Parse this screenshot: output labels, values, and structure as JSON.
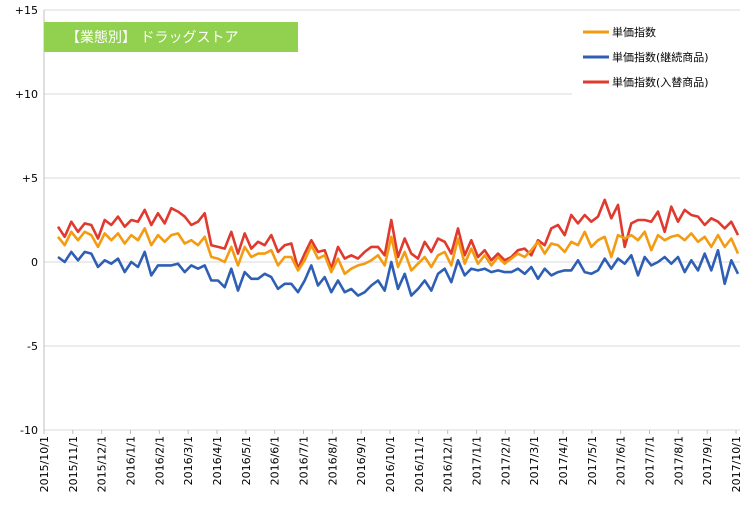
{
  "chart_data": {
    "type": "line",
    "title": "【業態別】 ドラッグストア",
    "title_box_color": "#92d050",
    "ylim": [
      -10,
      15
    ],
    "yticks": [
      15,
      10,
      5,
      0,
      -5,
      -10
    ],
    "ytick_labels": [
      "+15",
      "+10",
      "+5",
      "0",
      "-5",
      "-10"
    ],
    "x_tick_labels": [
      "2015/10/1",
      "2015/11/1",
      "2015/12/1",
      "2016/1/1",
      "2016/2/1",
      "2016/3/1",
      "2016/4/1",
      "2016/5/1",
      "2016/6/1",
      "2016/7/1",
      "2016/8/1",
      "2016/9/1",
      "2016/10/1",
      "2016/11/1",
      "2016/12/1",
      "2017/1/1",
      "2017/2/1",
      "2017/3/1",
      "2017/4/1",
      "2017/5/1",
      "2017/6/1",
      "2017/7/1",
      "2017/8/1",
      "2017/9/1",
      "2017/10/1"
    ],
    "grid": true,
    "legend_position": "top-right",
    "series": [
      {
        "name": "単価指数",
        "color": "#f39c12",
        "values": [
          1.5,
          1.0,
          1.8,
          1.3,
          1.8,
          1.6,
          0.9,
          1.7,
          1.3,
          1.7,
          1.1,
          1.6,
          1.3,
          2.0,
          1.0,
          1.6,
          1.2,
          1.6,
          1.7,
          1.1,
          1.3,
          1.0,
          1.5,
          0.3,
          0.2,
          0.0,
          0.9,
          -0.2,
          0.9,
          0.3,
          0.5,
          0.5,
          0.7,
          -0.2,
          0.3,
          0.3,
          -0.5,
          0.1,
          1.0,
          0.2,
          0.4,
          -0.6,
          0.2,
          -0.7,
          -0.4,
          -0.2,
          -0.1,
          0.1,
          0.4,
          -0.2,
          1.5,
          -0.3,
          0.6,
          -0.5,
          -0.1,
          0.3,
          -0.3,
          0.4,
          0.6,
          -0.2,
          1.4,
          -0.1,
          0.8,
          -0.1,
          0.4,
          -0.2,
          0.3,
          -0.1,
          0.2,
          0.5,
          0.3,
          0.7,
          1.2,
          0.5,
          1.1,
          1.0,
          0.6,
          1.2,
          1.0,
          1.8,
          0.9,
          1.3,
          1.5,
          0.3,
          1.6,
          1.4,
          1.6,
          1.3,
          1.8,
          0.7,
          1.6,
          1.3,
          1.5,
          1.6,
          1.3,
          1.7,
          1.2,
          1.5,
          0.9,
          1.6,
          0.9,
          1.4,
          0.5
        ]
      },
      {
        "name": "単価指数(継続商品)",
        "color": "#2f5fb5",
        "values": [
          0.3,
          0.0,
          0.6,
          0.1,
          0.6,
          0.5,
          -0.3,
          0.1,
          -0.1,
          0.2,
          -0.6,
          0.0,
          -0.3,
          0.6,
          -0.8,
          -0.2,
          -0.2,
          -0.2,
          -0.1,
          -0.6,
          -0.2,
          -0.4,
          -0.2,
          -1.1,
          -1.1,
          -1.5,
          -0.4,
          -1.7,
          -0.6,
          -1.0,
          -1.0,
          -0.7,
          -0.9,
          -1.6,
          -1.3,
          -1.3,
          -1.8,
          -1.1,
          -0.2,
          -1.4,
          -0.9,
          -1.8,
          -1.1,
          -1.8,
          -1.6,
          -2.0,
          -1.8,
          -1.4,
          -1.1,
          -1.7,
          0.0,
          -1.6,
          -0.7,
          -2.0,
          -1.6,
          -1.1,
          -1.7,
          -0.7,
          -0.4,
          -1.2,
          0.1,
          -0.8,
          -0.4,
          -0.5,
          -0.4,
          -0.6,
          -0.5,
          -0.6,
          -0.6,
          -0.4,
          -0.7,
          -0.3,
          -1.0,
          -0.4,
          -0.8,
          -0.6,
          -0.5,
          -0.5,
          0.1,
          -0.6,
          -0.7,
          -0.5,
          0.2,
          -0.4,
          0.2,
          -0.1,
          0.4,
          -0.8,
          0.3,
          -0.2,
          0.0,
          0.3,
          -0.1,
          0.3,
          -0.6,
          0.1,
          -0.5,
          0.5,
          -0.5,
          0.7,
          -1.3,
          0.1,
          -0.7
        ]
      },
      {
        "name": "単価指数(入替商品)",
        "color": "#e03a2e",
        "values": [
          2.1,
          1.5,
          2.4,
          1.8,
          2.3,
          2.2,
          1.4,
          2.5,
          2.2,
          2.7,
          2.1,
          2.5,
          2.4,
          3.1,
          2.2,
          2.9,
          2.3,
          3.2,
          3.0,
          2.7,
          2.2,
          2.4,
          2.9,
          1.0,
          0.9,
          0.8,
          1.8,
          0.5,
          1.7,
          0.8,
          1.2,
          1.0,
          1.6,
          0.6,
          1.0,
          1.1,
          -0.4,
          0.5,
          1.3,
          0.6,
          0.7,
          -0.4,
          0.9,
          0.2,
          0.4,
          0.2,
          0.6,
          0.9,
          0.9,
          0.4,
          2.5,
          0.3,
          1.4,
          0.5,
          0.2,
          1.2,
          0.6,
          1.4,
          1.2,
          0.5,
          2.0,
          0.4,
          1.3,
          0.3,
          0.7,
          0.1,
          0.5,
          0.1,
          0.3,
          0.7,
          0.8,
          0.4,
          1.3,
          1.0,
          2.0,
          2.2,
          1.6,
          2.8,
          2.3,
          2.8,
          2.4,
          2.7,
          3.7,
          2.6,
          3.4,
          0.9,
          2.3,
          2.5,
          2.5,
          2.4,
          3.0,
          1.8,
          3.3,
          2.4,
          3.1,
          2.8,
          2.7,
          2.2,
          2.6,
          2.4,
          2.0,
          2.4,
          1.6
        ]
      }
    ]
  }
}
